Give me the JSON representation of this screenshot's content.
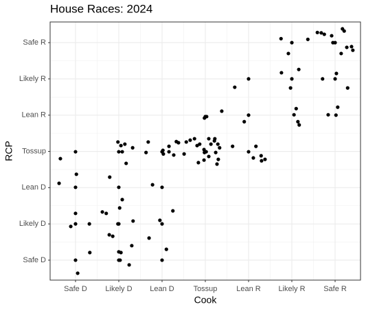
{
  "chart_data": {
    "type": "scatter",
    "title": "House Races: 2024",
    "x_label": "Cook",
    "y_label": "RCP",
    "color": "#000000",
    "grid": true,
    "xlim": [
      0.413,
      7.587
    ],
    "ylim": [
      0.45,
      7.57
    ],
    "xticks": [
      {
        "value": 1,
        "label": "Safe D"
      },
      {
        "value": 2,
        "label": "Likely D"
      },
      {
        "value": 3,
        "label": "Lean D"
      },
      {
        "value": 4,
        "label": "Tossup"
      },
      {
        "value": 5,
        "label": "Lean R"
      },
      {
        "value": 6,
        "label": "Likely R"
      },
      {
        "value": 7,
        "label": "Safe R"
      }
    ],
    "yticks": [
      {
        "value": 1,
        "label": "Safe D"
      },
      {
        "value": 2,
        "label": "Likely D"
      },
      {
        "value": 3,
        "label": "Lean D"
      },
      {
        "value": 4,
        "label": "Tossup"
      },
      {
        "value": 5,
        "label": "Lean R"
      },
      {
        "value": 6,
        "label": "Likely R"
      },
      {
        "value": 7,
        "label": "Safe R"
      }
    ],
    "x": [
      0.65,
      0.62,
      1,
      1.02,
      1,
      1,
      1,
      0.89,
      1,
      1.05,
      1.32,
      1.33,
      1.79,
      1.62,
      1.71,
      2,
      2.08,
      2.02,
      2,
      1.98,
      1.78,
      1.86,
      2.33,
      2,
      2.05,
      2,
      2.03,
      2.24,
      2.3,
      1.98,
      2.05,
      2.08,
      2.14,
      2,
      2.17,
      2.32,
      2.68,
      2.63,
      2.78,
      3,
      2.95,
      3,
      3.25,
      2.7,
      3.1,
      3,
      3,
      3.03,
      3.16,
      3.16,
      3.27,
      3.33,
      3.38,
      3.02,
      3.51,
      3.56,
      3.65,
      3.75,
      3.81,
      3.84,
      3.87,
      3.97,
      3.98,
      4.03,
      4,
      3.97,
      3.98,
      4.08,
      4.13,
      4.21,
      4.22,
      4.29,
      4.33,
      4.3,
      4.27,
      4.24,
      4.38,
      4.02,
      4.08,
      4.63,
      4.68,
      4.9,
      5,
      5,
      5,
      5.11,
      5.17,
      5.29,
      5.3,
      5.38,
      5.75,
      5.92,
      6,
      6,
      5.97,
      6.05,
      6.1,
      6.14,
      6.17,
      5.76,
      6.16,
      6.37,
      6.59,
      6.68,
      6.75,
      6.71,
      6.84,
      6.92,
      6.95,
      7,
      7.03,
      7,
      7.02,
      7.06,
      7.14,
      7.17,
      7.21,
      7.27,
      7.29,
      7.38,
      7.41
    ],
    "y": [
      3.8,
      3.12,
      3.99,
      3.37,
      3.01,
      2.29,
      2,
      1.93,
      1,
      0.64,
      2,
      1.21,
      3.29,
      2.33,
      2.29,
      3.01,
      2.67,
      2.44,
      2,
      2,
      1.7,
      1.66,
      2.08,
      1.23,
      1.21,
      1,
      1,
      0.87,
      1.4,
      4.26,
      4.16,
      3.99,
      4.2,
      3.99,
      3.67,
      4.1,
      4.26,
      3.97,
      3.08,
      3.01,
      2.1,
      2,
      2.36,
      1.61,
      1.3,
      1,
      3.99,
      3.93,
      4.14,
      3.99,
      3.9,
      4.27,
      4.24,
      4.03,
      3.93,
      4.26,
      4.31,
      4.35,
      4.16,
      3.69,
      4.2,
      4.05,
      3.97,
      4.96,
      4.96,
      3.76,
      4.92,
      4.35,
      4.2,
      4.29,
      4.35,
      4.2,
      4.1,
      3.78,
      3.65,
      3.97,
      5.11,
      3.99,
      3.86,
      4.14,
      5.77,
      4.82,
      5,
      6,
      3.99,
      3.82,
      4.14,
      3.88,
      3.74,
      3.78,
      7.11,
      6.7,
      7,
      6,
      5.75,
      5.01,
      5.18,
      4.82,
      4.73,
      6.17,
      6.26,
      7.09,
      7.28,
      7.27,
      7.23,
      6,
      5.01,
      7.19,
      7,
      7,
      6.15,
      6,
      5,
      5.22,
      6.7,
      7.38,
      7.32,
      6.87,
      5.75,
      6.89,
      6.79
    ]
  }
}
